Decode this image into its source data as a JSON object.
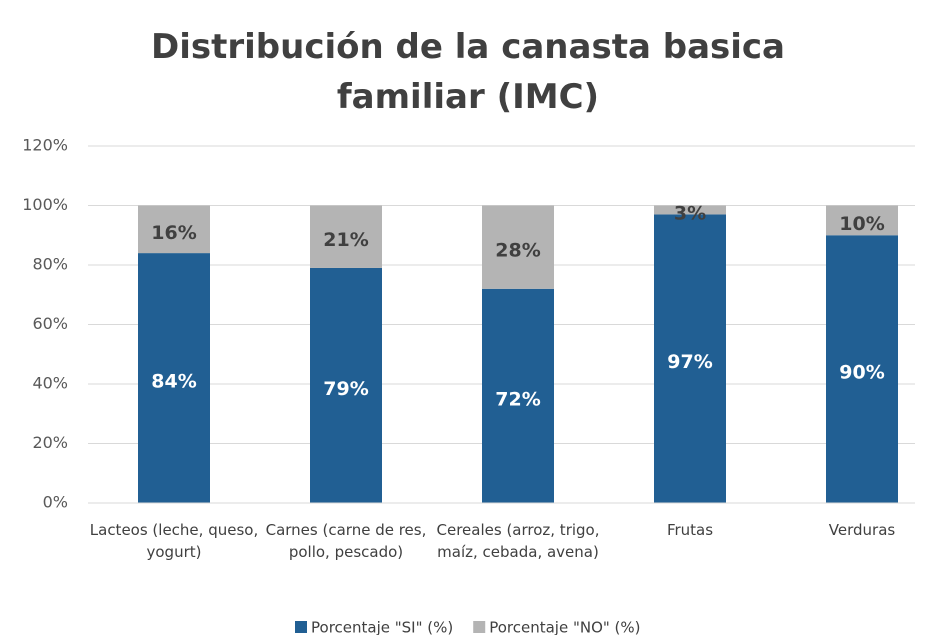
{
  "chart_data": {
    "type": "stacked_bar",
    "title": "Distribución de la canasta basica familiar (IMC)",
    "categories": [
      "Lacteos (leche, queso, yogurt)",
      "Carnes (carne de res, pollo, pescado)",
      "Cereales (arroz, trigo, maíz, cebada, avena)",
      "Frutas",
      "Verduras"
    ],
    "series": [
      {
        "name": "Porcentaje \"SI\" (%)",
        "color": "#215f93",
        "values": [
          84,
          79,
          72,
          97,
          90
        ],
        "value_labels": [
          "84%",
          "79%",
          "72%",
          "97%",
          "90%"
        ]
      },
      {
        "name": "Porcentaje \"NO\" (%)",
        "color": "#b4b4b4",
        "values": [
          16,
          21,
          28,
          3,
          10
        ],
        "value_labels": [
          "16%",
          "21%",
          "28%",
          "3%",
          "10%"
        ]
      }
    ],
    "ylim": [
      0,
      120
    ],
    "yticks": [
      {
        "value": 0,
        "label": "0%"
      },
      {
        "value": 20,
        "label": "20%"
      },
      {
        "value": 40,
        "label": "40%"
      },
      {
        "value": 60,
        "label": "60%"
      },
      {
        "value": 80,
        "label": "80%"
      },
      {
        "value": 100,
        "label": "100%"
      },
      {
        "value": 120,
        "label": "120%"
      }
    ],
    "grid": true,
    "legend": "bottom"
  }
}
